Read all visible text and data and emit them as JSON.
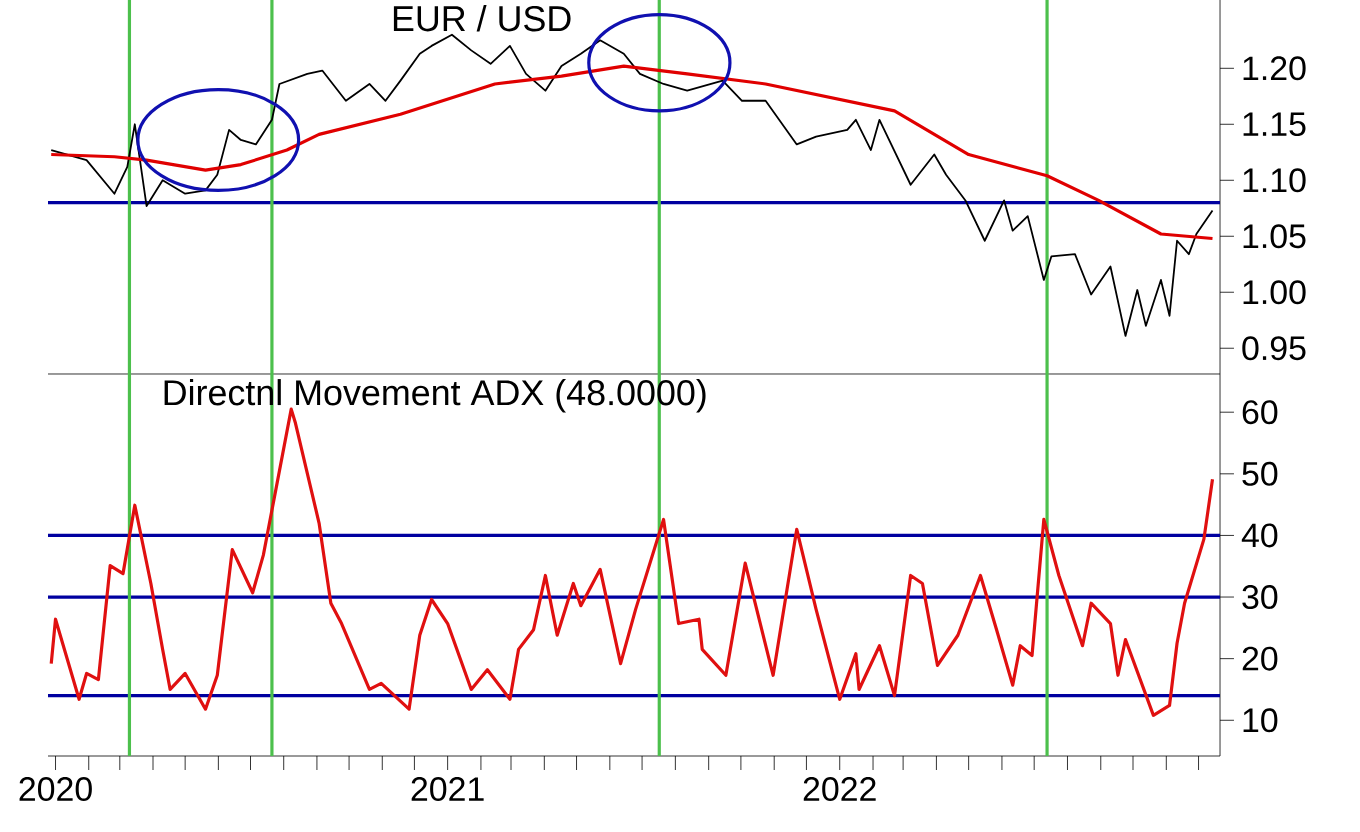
{
  "chart_data": [
    {
      "type": "line",
      "title": "EUR / USD",
      "tick_labels": "y",
      "xlim": [
        "2019-12-25",
        "2022-12-21"
      ],
      "ylim": [
        0.927,
        1.261
      ],
      "yticks": [
        0.95,
        {
          "value": 1.0,
          "label": "1.00"
        },
        1.05,
        {
          "value": 1.1,
          "label": "1.10"
        },
        1.15,
        {
          "value": 1.2,
          "label": "1.20"
        }
      ],
      "series": [
        {
          "color": "#000000",
          "x": [
            "2019-12-28",
            "2020-01-30",
            "2020-02-25",
            "2020-03-08",
            "2020-03-15",
            "2020-03-26",
            "2020-04-10",
            "2020-05-01",
            "2020-05-20",
            "2020-05-31",
            "2020-06-11",
            "2020-06-22",
            "2020-07-06",
            "2020-07-21",
            "2020-07-28",
            "2020-08-23",
            "2020-09-06",
            "2020-09-28",
            "2020-10-20",
            "2020-11-04",
            "2020-11-18",
            "2020-12-06",
            "2020-12-17",
            "2021-01-05",
            "2021-01-23",
            "2021-02-10",
            "2021-02-28",
            "2021-03-15",
            "2021-04-02",
            "2021-04-17",
            "2021-05-05",
            "2021-05-23",
            "2021-06-14",
            "2021-06-29",
            "2021-07-21",
            "2021-08-12",
            "2021-09-14",
            "2021-10-02",
            "2021-10-24",
            "2021-11-22",
            "2021-12-10",
            "2022-01-08",
            "2022-01-16",
            "2022-01-30",
            "2022-02-07",
            "2022-03-08",
            "2022-03-30",
            "2022-04-10",
            "2022-04-28",
            "2022-05-16",
            "2022-06-03",
            "2022-06-11",
            "2022-06-25",
            "2022-07-10",
            "2022-07-17",
            "2022-08-08",
            "2022-08-23",
            "2022-09-10",
            "2022-09-24",
            "2022-10-05",
            "2022-10-13",
            "2022-10-27",
            "2022-11-04",
            "2022-11-11",
            "2022-11-22",
            "2022-11-29",
            "2022-12-14"
          ],
          "values": [
            1.127,
            1.118,
            1.088,
            1.112,
            1.15,
            1.077,
            1.1,
            1.088,
            1.091,
            1.105,
            1.145,
            1.136,
            1.132,
            1.154,
            1.186,
            1.195,
            1.198,
            1.171,
            1.186,
            1.171,
            1.189,
            1.213,
            1.22,
            1.23,
            1.216,
            1.204,
            1.22,
            1.195,
            1.18,
            1.202,
            1.213,
            1.225,
            1.213,
            1.195,
            1.186,
            1.18,
            1.189,
            1.171,
            1.171,
            1.132,
            1.139,
            1.145,
            1.154,
            1.127,
            1.154,
            1.096,
            1.123,
            1.105,
            1.082,
            1.046,
            1.082,
            1.055,
            1.068,
            1.011,
            1.032,
            1.034,
            0.998,
            1.023,
            0.961,
            1.002,
            0.97,
            1.011,
            0.979,
            1.046,
            1.034,
            1.052,
            1.073
          ]
        },
        {
          "color": "#e00000",
          "x": [
            "2019-12-28",
            "2020-02-25",
            "2020-03-26",
            "2020-05-20",
            "2020-06-22",
            "2020-08-04",
            "2020-09-03",
            "2020-11-18",
            "2021-02-14",
            "2021-04-17",
            "2021-06-14",
            "2021-08-12",
            "2021-10-24",
            "2022-02-21",
            "2022-05-01",
            "2022-07-13",
            "2022-08-30",
            "2022-10-27",
            "2022-12-14"
          ],
          "values": [
            1.123,
            1.121,
            1.118,
            1.109,
            1.114,
            1.127,
            1.141,
            1.159,
            1.186,
            1.193,
            1.202,
            1.195,
            1.186,
            1.162,
            1.123,
            1.104,
            1.082,
            1.052,
            1.048
          ]
        }
      ],
      "ref_lines": [
        {
          "axis": "y",
          "value": 1.08,
          "color": "#0000a0"
        },
        {
          "axis": "x",
          "value": "2020-03-10",
          "color": "#4cc04c"
        },
        {
          "axis": "x",
          "value": "2020-07-21",
          "color": "#4cc04c"
        },
        {
          "axis": "x",
          "value": "2021-07-17",
          "color": "#4cc04c"
        },
        {
          "axis": "x",
          "value": "2022-07-13",
          "color": "#4cc04c"
        }
      ]
    },
    {
      "type": "line",
      "title": "Directnl Movement ADX (48.0000)",
      "xlim": [
        "2019-12-25",
        "2022-12-21"
      ],
      "ylim": [
        4.2,
        66.2
      ],
      "yticks": [
        10,
        20,
        30,
        40,
        50,
        60
      ],
      "xticks": [
        {
          "value": "2020-01-01",
          "label": "2020"
        },
        {
          "value": "2020-02-01",
          "label": null
        },
        {
          "value": "2020-03-01",
          "label": null
        },
        {
          "value": "2020-04-01",
          "label": null
        },
        {
          "value": "2020-05-01",
          "label": null
        },
        {
          "value": "2020-06-01",
          "label": null
        },
        {
          "value": "2020-07-01",
          "label": null
        },
        {
          "value": "2020-08-01",
          "label": null
        },
        {
          "value": "2020-09-01",
          "label": null
        },
        {
          "value": "2020-10-01",
          "label": null
        },
        {
          "value": "2020-11-01",
          "label": null
        },
        {
          "value": "2020-12-01",
          "label": null
        },
        {
          "value": "2021-01-01",
          "label": "2021"
        },
        {
          "value": "2021-02-01",
          "label": null
        },
        {
          "value": "2021-03-01",
          "label": null
        },
        {
          "value": "2021-04-01",
          "label": null
        },
        {
          "value": "2021-05-01",
          "label": null
        },
        {
          "value": "2021-06-01",
          "label": null
        },
        {
          "value": "2021-07-01",
          "label": null
        },
        {
          "value": "2021-08-01",
          "label": null
        },
        {
          "value": "2021-09-01",
          "label": null
        },
        {
          "value": "2021-10-01",
          "label": null
        },
        {
          "value": "2021-11-01",
          "label": null
        },
        {
          "value": "2021-12-01",
          "label": null
        },
        {
          "value": "2022-01-01",
          "label": "2022"
        },
        {
          "value": "2022-02-01",
          "label": null
        },
        {
          "value": "2022-03-01",
          "label": null
        },
        {
          "value": "2022-04-01",
          "label": null
        },
        {
          "value": "2022-05-01",
          "label": null
        },
        {
          "value": "2022-06-01",
          "label": null
        },
        {
          "value": "2022-07-01",
          "label": null
        },
        {
          "value": "2022-08-01",
          "label": null
        },
        {
          "value": "2022-09-01",
          "label": null
        },
        {
          "value": "2022-10-01",
          "label": null
        },
        {
          "value": "2022-11-01",
          "label": null
        },
        {
          "value": "2022-12-01",
          "label": null
        }
      ],
      "series": [
        {
          "color": "#e01010",
          "x": [
            "2019-12-28",
            "2020-01-01",
            "2020-01-23",
            "2020-01-30",
            "2020-02-10",
            "2020-02-21",
            "2020-03-04",
            "2020-03-15",
            "2020-03-30",
            "2020-04-10",
            "2020-04-17",
            "2020-05-01",
            "2020-05-20",
            "2020-05-31",
            "2020-06-14",
            "2020-07-03",
            "2020-07-13",
            "2020-08-08",
            "2020-08-12",
            "2020-09-03",
            "2020-09-14",
            "2020-09-24",
            "2020-10-20",
            "2020-10-31",
            "2020-11-26",
            "2020-12-06",
            "2020-12-17",
            "2021-01-01",
            "2021-01-23",
            "2021-02-07",
            "2021-02-28",
            "2021-03-08",
            "2021-03-22",
            "2021-04-02",
            "2021-04-13",
            "2021-04-28",
            "2021-05-05",
            "2021-05-23",
            "2021-06-11",
            "2021-06-25",
            "2021-07-21",
            "2021-08-04",
            "2021-08-23",
            "2021-08-26",
            "2021-09-17",
            "2021-10-05",
            "2021-10-31",
            "2021-11-22",
            "2021-12-10",
            "2022-01-01",
            "2022-01-16",
            "2022-01-19",
            "2022-02-07",
            "2022-02-21",
            "2022-03-08",
            "2022-03-19",
            "2022-04-02",
            "2022-04-21",
            "2022-05-12",
            "2022-05-27",
            "2022-06-11",
            "2022-06-18",
            "2022-06-29",
            "2022-07-10",
            "2022-07-24",
            "2022-08-15",
            "2022-08-23",
            "2022-09-10",
            "2022-09-17",
            "2022-09-24",
            "2022-10-20",
            "2022-11-04",
            "2022-11-11",
            "2022-11-18",
            "2022-12-06",
            "2022-12-14"
          ],
          "values": [
            19.2,
            26.4,
            13.4,
            17.6,
            16.6,
            35.1,
            33.8,
            44.9,
            32.2,
            21.5,
            15.0,
            17.6,
            11.8,
            17.3,
            37.7,
            30.7,
            36.8,
            60.5,
            58.2,
            42.0,
            29.0,
            25.7,
            15.0,
            16.0,
            11.8,
            23.8,
            29.6,
            25.7,
            15.0,
            18.2,
            13.4,
            21.5,
            24.7,
            33.5,
            23.8,
            32.2,
            28.6,
            34.5,
            19.2,
            28.0,
            42.6,
            25.7,
            26.4,
            21.5,
            17.3,
            35.5,
            17.3,
            41.0,
            28.0,
            13.4,
            20.8,
            15.0,
            22.1,
            14.0,
            33.5,
            32.2,
            18.9,
            23.8,
            33.5,
            24.7,
            15.7,
            22.1,
            20.5,
            42.6,
            33.5,
            22.1,
            29.0,
            25.7,
            17.3,
            23.1,
            10.8,
            12.4,
            22.5,
            29.0,
            39.4,
            49.1
          ]
        }
      ],
      "ref_lines": [
        {
          "axis": "y",
          "value": 40,
          "color": "#0000a0"
        },
        {
          "axis": "y",
          "value": 30,
          "color": "#0000a0"
        },
        {
          "axis": "y",
          "value": 14,
          "color": "#0000a0"
        },
        {
          "axis": "x",
          "value": "2020-03-10",
          "color": "#4cc04c"
        },
        {
          "axis": "x",
          "value": "2020-07-21",
          "color": "#4cc04c"
        },
        {
          "axis": "x",
          "value": "2021-07-17",
          "color": "#4cc04c"
        },
        {
          "axis": "x",
          "value": "2022-07-13",
          "color": "#4cc04c"
        }
      ]
    }
  ]
}
